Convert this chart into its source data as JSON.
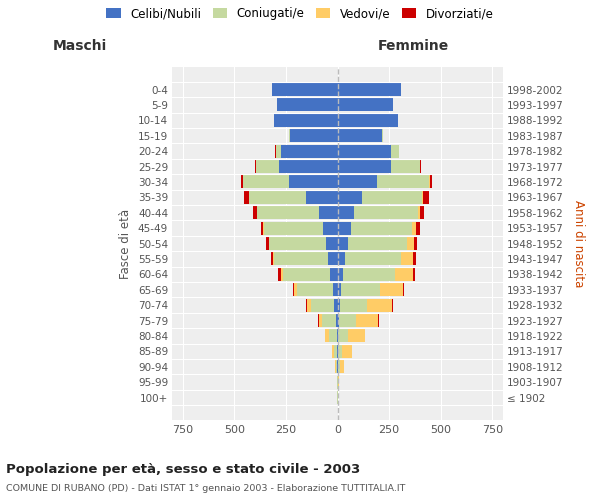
{
  "age_groups": [
    "100+",
    "95-99",
    "90-94",
    "85-89",
    "80-84",
    "75-79",
    "70-74",
    "65-69",
    "60-64",
    "55-59",
    "50-54",
    "45-49",
    "40-44",
    "35-39",
    "30-34",
    "25-29",
    "20-24",
    "15-19",
    "10-14",
    "5-9",
    "0-4"
  ],
  "birth_years": [
    "≤ 1902",
    "1903-1907",
    "1908-1912",
    "1913-1917",
    "1918-1922",
    "1923-1927",
    "1928-1932",
    "1933-1937",
    "1938-1942",
    "1943-1947",
    "1948-1952",
    "1953-1957",
    "1958-1962",
    "1963-1967",
    "1968-1972",
    "1973-1977",
    "1978-1982",
    "1983-1987",
    "1988-1992",
    "1993-1997",
    "1998-2002"
  ],
  "males": {
    "celibi": [
      0,
      0,
      1,
      2,
      4,
      8,
      15,
      22,
      38,
      48,
      58,
      72,
      90,
      155,
      235,
      285,
      272,
      228,
      308,
      292,
      318
    ],
    "coniugati": [
      1,
      2,
      6,
      15,
      38,
      68,
      115,
      175,
      228,
      258,
      272,
      285,
      298,
      272,
      222,
      112,
      28,
      5,
      1,
      0,
      0
    ],
    "vedovi": [
      0,
      1,
      3,
      8,
      18,
      15,
      18,
      12,
      8,
      5,
      3,
      2,
      1,
      1,
      0,
      0,
      0,
      0,
      0,
      0,
      0
    ],
    "divorziati": [
      0,
      0,
      0,
      0,
      1,
      2,
      4,
      6,
      14,
      13,
      13,
      13,
      20,
      23,
      10,
      3,
      1,
      0,
      0,
      0,
      0
    ]
  },
  "females": {
    "nubili": [
      0,
      0,
      2,
      3,
      4,
      6,
      10,
      16,
      26,
      36,
      52,
      66,
      82,
      118,
      192,
      258,
      258,
      213,
      292,
      268,
      308
    ],
    "coniugate": [
      1,
      2,
      8,
      20,
      46,
      82,
      132,
      188,
      252,
      272,
      282,
      296,
      306,
      292,
      252,
      142,
      38,
      7,
      2,
      0,
      0
    ],
    "vedove": [
      1,
      6,
      22,
      46,
      82,
      108,
      122,
      112,
      86,
      56,
      34,
      18,
      10,
      5,
      2,
      1,
      0,
      0,
      0,
      0,
      0
    ],
    "divorziate": [
      0,
      0,
      0,
      1,
      2,
      3,
      5,
      8,
      13,
      15,
      18,
      18,
      22,
      26,
      12,
      4,
      1,
      0,
      0,
      0,
      0
    ]
  },
  "colors": {
    "celibi": "#4472C4",
    "coniugati": "#C5D9A0",
    "vedovi": "#FFCC66",
    "divorziati": "#CC0000"
  },
  "xlim": 800,
  "xticks": [
    -750,
    -500,
    -250,
    0,
    250,
    500,
    750
  ],
  "title": "Popolazione per età, sesso e stato civile - 2003",
  "subtitle": "COMUNE DI RUBANO (PD) - Dati ISTAT 1° gennaio 2003 - Elaborazione TUTTITALIA.IT",
  "label_maschi": "Maschi",
  "label_femmine": "Femmine",
  "ylabel_left": "Fasce di età",
  "ylabel_right": "Anni di nascita",
  "legend_labels": [
    "Celibi/Nubili",
    "Coniugati/e",
    "Vedovi/e",
    "Divorziati/e"
  ],
  "bg_color": "#ffffff",
  "plot_bg_color": "#eeeeee"
}
